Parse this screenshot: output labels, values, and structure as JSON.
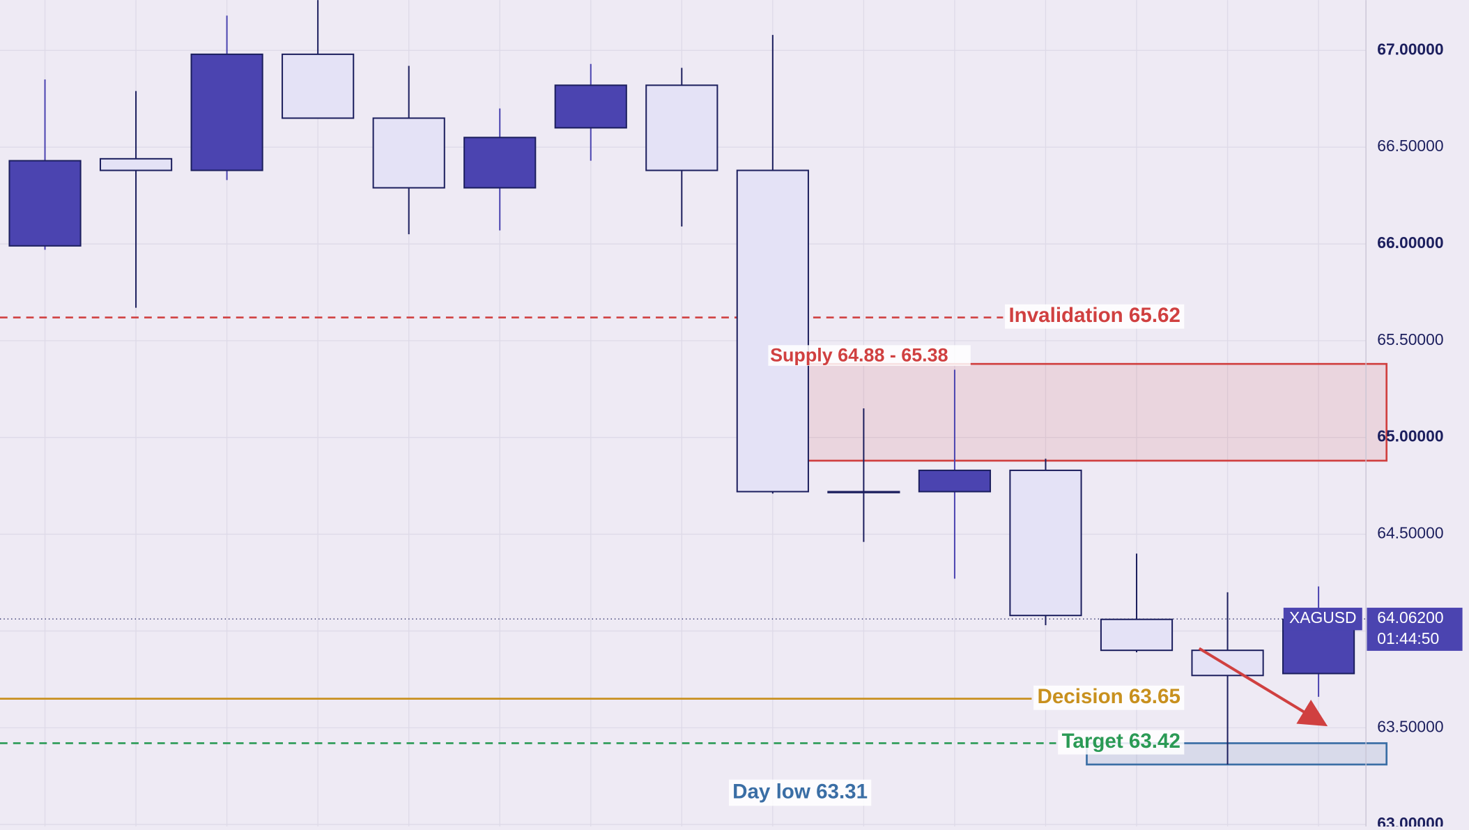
{
  "chart_data": {
    "type": "candlestick",
    "series": [
      {
        "name": "XAGUSD",
        "up_color": "#4b44b0",
        "down_color": "#e4e2f6",
        "edge_color": "#1c1f5e",
        "open": [
          65.99,
          66.44,
          66.38,
          66.98,
          66.65,
          66.29,
          66.6,
          66.82,
          66.38,
          64.72,
          64.72,
          64.83,
          64.06,
          63.9,
          63.78
        ],
        "high": [
          66.85,
          66.79,
          67.18,
          67.26,
          66.92,
          66.7,
          66.93,
          66.91,
          67.08,
          65.15,
          65.35,
          64.89,
          64.4,
          64.2,
          64.23
        ],
        "low": [
          65.97,
          65.67,
          66.33,
          66.65,
          66.05,
          66.07,
          66.43,
          66.09,
          64.71,
          64.46,
          64.27,
          64.03,
          63.89,
          63.31,
          63.66
        ],
        "close": [
          66.43,
          66.38,
          66.98,
          66.65,
          66.29,
          66.55,
          66.82,
          66.38,
          64.72,
          64.72,
          64.83,
          64.08,
          63.9,
          63.77,
          64.06
        ]
      }
    ],
    "ylim": [
      62.99,
      67.26
    ],
    "yticks": [
      {
        "value": 63.0,
        "label": "63.00000"
      },
      {
        "value": 63.5,
        "label": "63.50000"
      },
      {
        "value": 64.0,
        "label": "64.00000"
      },
      {
        "value": 64.5,
        "label": "64.50000"
      },
      {
        "value": 65.0,
        "label": "65.00000"
      },
      {
        "value": 65.5,
        "label": "65.50000"
      },
      {
        "value": 66.0,
        "label": "66.00000"
      },
      {
        "value": 66.5,
        "label": "66.50000"
      },
      {
        "value": 67.0,
        "label": "67.00000"
      }
    ],
    "grid": true,
    "levels": [
      {
        "label": "Invalidation 65.62",
        "value": 65.62,
        "color": "#d04040",
        "style": "dashed"
      },
      {
        "label": "Decision 63.65",
        "value": 63.65,
        "color": "#c8901e",
        "style": "solid"
      },
      {
        "label": "Target 63.42",
        "value": 63.42,
        "color": "#2a9a55",
        "style": "dashed"
      }
    ],
    "zones": [
      {
        "label": "Supply 64.88 - 65.38",
        "low": 64.88,
        "high": 65.38,
        "color": "#d04040"
      },
      {
        "low": 63.31,
        "high": 63.42,
        "color": "#3a6ea5"
      }
    ],
    "day_low": {
      "label": "Day low 63.31",
      "color": "#3a6ea5"
    },
    "current": {
      "symbol": "XAGUSD",
      "price": {
        "value": 64.062,
        "label": "64.06200"
      },
      "countdown": "01:44:50",
      "color": "#4b44b0"
    }
  }
}
